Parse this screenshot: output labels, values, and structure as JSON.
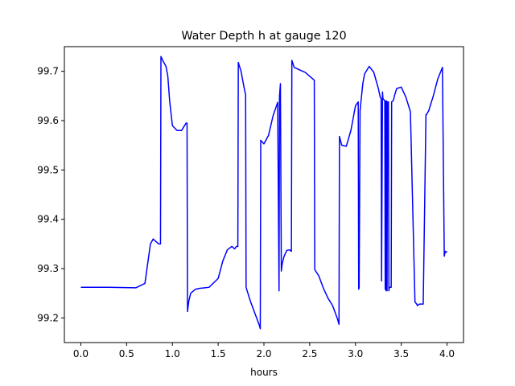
{
  "chart_data": {
    "type": "line",
    "title": "Water Depth h at gauge 120",
    "xlabel": "hours",
    "ylabel": "",
    "xlim": [
      -0.18,
      4.18
    ],
    "ylim": [
      99.15,
      99.75
    ],
    "xticks": [
      0.0,
      0.5,
      1.0,
      1.5,
      2.0,
      2.5,
      3.0,
      3.5,
      4.0
    ],
    "xtick_labels": [
      "0.0",
      "0.5",
      "1.0",
      "1.5",
      "2.0",
      "2.5",
      "3.0",
      "3.5",
      "4.0"
    ],
    "yticks": [
      99.2,
      99.3,
      99.4,
      99.5,
      99.6,
      99.7
    ],
    "ytick_labels": [
      "99.2",
      "99.3",
      "99.4",
      "99.5",
      "99.6",
      "99.7"
    ],
    "grid": false,
    "series": [
      {
        "color": "#0000ff",
        "x": [
          0.0,
          0.3,
          0.6,
          0.7,
          0.73,
          0.76,
          0.79,
          0.82,
          0.85,
          0.87,
          0.875,
          0.9,
          0.93,
          0.95,
          0.97,
          1.0,
          1.05,
          1.1,
          1.15,
          1.16,
          1.165,
          1.18,
          1.2,
          1.25,
          1.3,
          1.4,
          1.5,
          1.55,
          1.6,
          1.65,
          1.68,
          1.7,
          1.715,
          1.72,
          1.75,
          1.78,
          1.8,
          1.805,
          1.85,
          1.9,
          1.95,
          1.96,
          1.965,
          2.0,
          2.05,
          2.1,
          2.15,
          2.165,
          2.17,
          2.18,
          2.19,
          2.2,
          2.22,
          2.25,
          2.28,
          2.3,
          2.305,
          2.33,
          2.4,
          2.45,
          2.5,
          2.55,
          2.555,
          2.6,
          2.65,
          2.7,
          2.75,
          2.8,
          2.82,
          2.825,
          2.85,
          2.9,
          2.95,
          3.0,
          3.03,
          3.035,
          3.04,
          3.05,
          3.08,
          3.1,
          3.15,
          3.2,
          3.25,
          3.27,
          3.28,
          3.285,
          3.295,
          3.3,
          3.32,
          3.325,
          3.33,
          3.335,
          3.34,
          3.345,
          3.35,
          3.36,
          3.365,
          3.37,
          3.39,
          3.395,
          3.41,
          3.42,
          3.425,
          3.45,
          3.5,
          3.55,
          3.6,
          3.65,
          3.67,
          3.675,
          3.7,
          3.74,
          3.77,
          3.775,
          3.8,
          3.85,
          3.9,
          3.95,
          3.97,
          3.975,
          3.98,
          3.99,
          4.0
        ],
        "y": [
          99.262,
          99.262,
          99.261,
          99.27,
          99.31,
          99.35,
          99.36,
          99.355,
          99.35,
          99.35,
          99.73,
          99.72,
          99.71,
          99.69,
          99.64,
          99.59,
          99.58,
          99.58,
          99.595,
          99.595,
          99.213,
          99.235,
          99.25,
          99.258,
          99.26,
          99.262,
          99.28,
          99.315,
          99.338,
          99.345,
          99.34,
          99.345,
          99.345,
          99.718,
          99.7,
          99.67,
          99.652,
          99.262,
          99.235,
          99.21,
          99.185,
          99.178,
          99.56,
          99.553,
          99.57,
          99.61,
          99.637,
          99.255,
          99.65,
          99.675,
          99.295,
          99.31,
          99.325,
          99.337,
          99.338,
          99.335,
          99.722,
          99.708,
          99.702,
          99.698,
          99.69,
          99.682,
          99.298,
          99.285,
          99.26,
          99.24,
          99.225,
          99.2,
          99.187,
          99.568,
          99.55,
          99.548,
          99.58,
          99.63,
          99.638,
          99.258,
          99.262,
          99.62,
          99.675,
          99.695,
          99.71,
          99.698,
          99.665,
          99.648,
          99.645,
          99.275,
          99.658,
          99.645,
          99.64,
          99.258,
          99.64,
          99.255,
          99.64,
          99.255,
          99.638,
          99.638,
          99.255,
          99.262,
          99.262,
          99.638,
          99.64,
          99.645,
          99.65,
          99.665,
          99.668,
          99.648,
          99.618,
          99.232,
          99.228,
          99.225,
          99.228,
          99.228,
          99.612,
          99.612,
          99.62,
          99.65,
          99.685,
          99.708,
          99.325,
          99.33,
          99.335,
          99.333,
          99.335
        ]
      }
    ]
  }
}
